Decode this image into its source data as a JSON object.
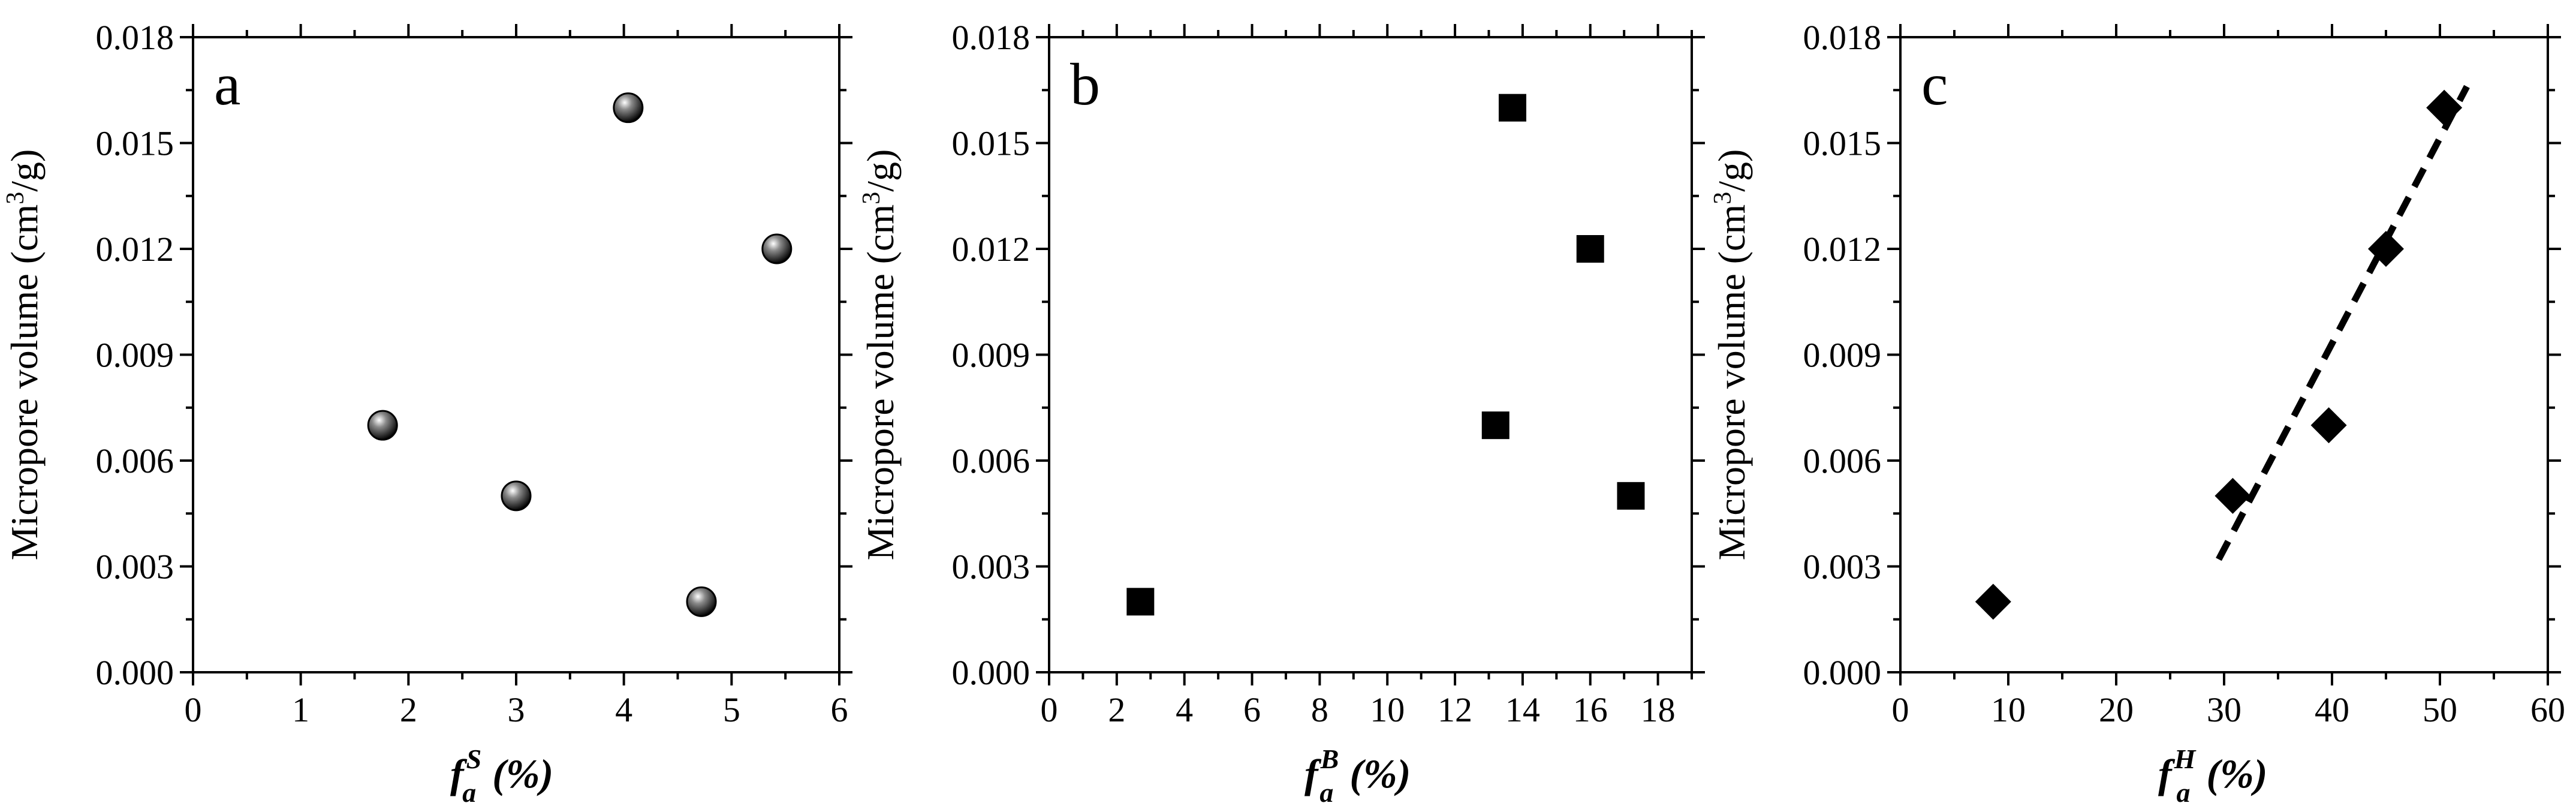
{
  "colors": {
    "axis": "#000000",
    "marker": "#000000",
    "background": "#ffffff"
  },
  "chart_data": [
    {
      "type": "scatter",
      "panel_label": "a",
      "marker": "sphere",
      "xlabel": {
        "main": "f",
        "sup": "S",
        "sub": "a",
        "rest": " (%)"
      },
      "ylabel": {
        "pre": "Micropore volume  (cm",
        "sup": "3",
        "post": "/g)"
      },
      "xlim": [
        0,
        6
      ],
      "ylim": [
        0,
        0.018
      ],
      "xticks": [
        "0",
        "1",
        "2",
        "3",
        "4",
        "5",
        "6"
      ],
      "yticks": [
        "0.000",
        "0.003",
        "0.006",
        "0.009",
        "0.012",
        "0.015",
        "0.018"
      ],
      "points": [
        {
          "x": 1.76,
          "y": 0.007
        },
        {
          "x": 3.0,
          "y": 0.005
        },
        {
          "x": 4.04,
          "y": 0.016
        },
        {
          "x": 4.72,
          "y": 0.002
        },
        {
          "x": 5.42,
          "y": 0.012
        }
      ]
    },
    {
      "type": "scatter",
      "panel_label": "b",
      "marker": "square",
      "xlabel": {
        "main": "f",
        "sup": "B",
        "sub": "a",
        "rest": " (%)"
      },
      "ylabel": {
        "pre": "Micropore volume  (cm",
        "sup": "3",
        "post": "/g)"
      },
      "xlim": [
        0,
        19
      ],
      "ylim": [
        0,
        0.018
      ],
      "xticks": [
        "0",
        "2",
        "4",
        "6",
        "8",
        "10",
        "12",
        "14",
        "16",
        "18"
      ],
      "yticks": [
        "0.000",
        "0.003",
        "0.006",
        "0.009",
        "0.012",
        "0.015",
        "0.018"
      ],
      "points": [
        {
          "x": 2.7,
          "y": 0.002
        },
        {
          "x": 13.2,
          "y": 0.007
        },
        {
          "x": 13.7,
          "y": 0.016
        },
        {
          "x": 16.0,
          "y": 0.012
        },
        {
          "x": 17.2,
          "y": 0.005
        }
      ]
    },
    {
      "type": "scatter",
      "panel_label": "c",
      "marker": "diamond",
      "xlabel": {
        "main": "f",
        "sup": "H",
        "sub": "a",
        "rest": " (%)"
      },
      "ylabel": {
        "pre": "Micropore volume  (cm",
        "sup": "3",
        "post": "/g)"
      },
      "xlim": [
        0,
        60
      ],
      "ylim": [
        0,
        0.018
      ],
      "xticks": [
        "0",
        "10",
        "20",
        "30",
        "40",
        "50",
        "60"
      ],
      "yticks": [
        "0.000",
        "0.003",
        "0.006",
        "0.009",
        "0.012",
        "0.015",
        "0.018"
      ],
      "points": [
        {
          "x": 8.6,
          "y": 0.002
        },
        {
          "x": 30.8,
          "y": 0.005
        },
        {
          "x": 39.7,
          "y": 0.007
        },
        {
          "x": 45.0,
          "y": 0.012
        },
        {
          "x": 50.4,
          "y": 0.016
        }
      ],
      "fit_line": {
        "style": "dashed",
        "x": [
          29.5,
          52.5
        ],
        "y": [
          0.0032,
          0.0166
        ]
      }
    }
  ]
}
